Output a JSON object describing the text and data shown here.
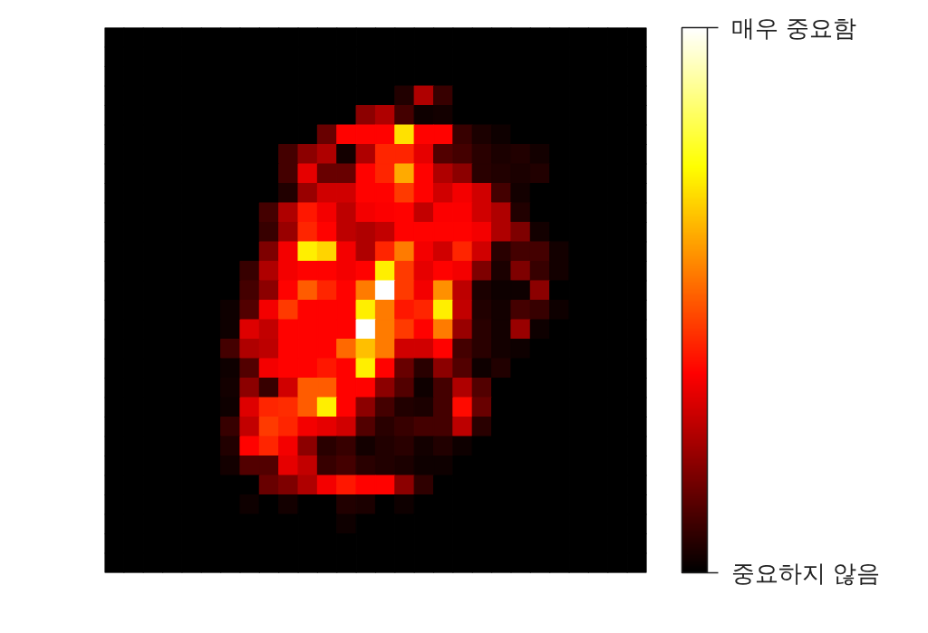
{
  "chart_data": {
    "type": "heatmap",
    "categories": [
      null,
      null,
      null,
      null,
      null,
      null,
      null,
      null,
      null,
      null,
      null,
      null,
      null,
      null,
      null,
      null,
      null,
      null,
      null,
      null,
      null,
      null,
      null,
      null,
      null,
      null,
      null,
      null
    ],
    "y_categories": [
      null,
      null,
      null,
      null,
      null,
      null,
      null,
      null,
      null,
      null,
      null,
      null,
      null,
      null,
      null,
      null,
      null,
      null,
      null,
      null,
      null,
      null,
      null,
      null,
      null,
      null,
      null,
      null
    ],
    "cells": [
      [
        0,
        0,
        0,
        0,
        0,
        0,
        0,
        0,
        0,
        0,
        0,
        0,
        0,
        0,
        0,
        0,
        0,
        0,
        0,
        0,
        0,
        0,
        0,
        0,
        0,
        0,
        0,
        0
      ],
      [
        0,
        0,
        0,
        0,
        0,
        0,
        0,
        0,
        0,
        0,
        0,
        0,
        0,
        0,
        0,
        0,
        0,
        0,
        0,
        0,
        0,
        0,
        0,
        0,
        0,
        0,
        0,
        0
      ],
      [
        0,
        0,
        0,
        0,
        0,
        0,
        0,
        0,
        0,
        0,
        0,
        0,
        0,
        0,
        0,
        0,
        0,
        0,
        0,
        0,
        0,
        0,
        0,
        0,
        0,
        0,
        0,
        0
      ],
      [
        0,
        0,
        0,
        0,
        0,
        0,
        0,
        0,
        0,
        0,
        0,
        0,
        0,
        0,
        0,
        0.05,
        0.25,
        0.08,
        0,
        0,
        0,
        0,
        0,
        0,
        0,
        0,
        0,
        0
      ],
      [
        0,
        0,
        0,
        0,
        0,
        0,
        0,
        0,
        0,
        0,
        0,
        0,
        0,
        0.2,
        0.25,
        0.1,
        0.02,
        0.03,
        0,
        0,
        0,
        0,
        0,
        0,
        0,
        0,
        0,
        0
      ],
      [
        0,
        0,
        0,
        0,
        0,
        0,
        0,
        0,
        0,
        0,
        0,
        0.15,
        0.37,
        0.37,
        0.37,
        0.7,
        0.37,
        0.37,
        0.08,
        0.04,
        0.02,
        0,
        0,
        0,
        0,
        0,
        0,
        0
      ],
      [
        0,
        0,
        0,
        0,
        0,
        0,
        0,
        0,
        0,
        0.1,
        0.2,
        0.25,
        0.03,
        0.25,
        0.42,
        0.42,
        0.33,
        0.12,
        0.1,
        0.06,
        0.04,
        0.05,
        0.03,
        0,
        0,
        0,
        0,
        0
      ],
      [
        0,
        0,
        0,
        0,
        0,
        0,
        0,
        0,
        0,
        0.1,
        0.33,
        0.15,
        0.15,
        0.37,
        0.42,
        0.62,
        0.37,
        0.25,
        0.2,
        0.06,
        0.05,
        0.04,
        0.05,
        0,
        0,
        0,
        0,
        0
      ],
      [
        0,
        0,
        0,
        0,
        0,
        0,
        0,
        0,
        0,
        0.05,
        0.22,
        0.3,
        0.3,
        0.37,
        0.37,
        0.45,
        0.37,
        0.3,
        0.35,
        0.3,
        0.1,
        0.03,
        0,
        0,
        0,
        0,
        0,
        0
      ],
      [
        0,
        0,
        0,
        0,
        0,
        0,
        0,
        0,
        0.1,
        0.25,
        0.4,
        0.35,
        0.27,
        0.35,
        0.36,
        0.37,
        0.28,
        0.36,
        0.36,
        0.3,
        0.25,
        0.05,
        0,
        0,
        0,
        0,
        0,
        0
      ],
      [
        0,
        0,
        0,
        0,
        0,
        0,
        0,
        0,
        0.08,
        0.22,
        0.42,
        0.37,
        0.27,
        0.25,
        0.28,
        0.37,
        0.37,
        0.37,
        0.37,
        0.35,
        0.25,
        0.18,
        0.03,
        0,
        0,
        0,
        0,
        0
      ],
      [
        0,
        0,
        0,
        0,
        0,
        0,
        0,
        0,
        0.18,
        0.35,
        0.72,
        0.68,
        0.35,
        0.25,
        0.42,
        0.55,
        0.35,
        0.3,
        0.42,
        0.3,
        0.06,
        0.1,
        0.1,
        0.03,
        0,
        0,
        0,
        0
      ],
      [
        0,
        0,
        0,
        0,
        0,
        0,
        0,
        0.08,
        0.25,
        0.35,
        0.37,
        0.37,
        0.35,
        0.37,
        0.72,
        0.45,
        0.33,
        0.37,
        0.35,
        0.18,
        0.04,
        0.18,
        0.08,
        0.03,
        0,
        0,
        0,
        0
      ],
      [
        0,
        0,
        0,
        0,
        0,
        0,
        0,
        0.1,
        0.2,
        0.37,
        0.5,
        0.42,
        0.37,
        0.55,
        1,
        0.45,
        0.35,
        0.58,
        0.27,
        0.04,
        0.02,
        0.02,
        0.2,
        0,
        0,
        0,
        0,
        0
      ],
      [
        0,
        0,
        0,
        0,
        0,
        0,
        0.02,
        0.12,
        0.35,
        0.45,
        0.37,
        0.37,
        0.37,
        0.72,
        0.55,
        0.4,
        0.42,
        0.72,
        0.28,
        0.05,
        0.03,
        0.1,
        0.08,
        0.02,
        0,
        0,
        0,
        0
      ],
      [
        0,
        0,
        0,
        0,
        0,
        0,
        0.02,
        0.32,
        0.28,
        0.37,
        0.37,
        0.37,
        0.37,
        1,
        0.55,
        0.45,
        0.37,
        0.55,
        0.22,
        0.06,
        0.03,
        0.22,
        0.02,
        0,
        0,
        0,
        0,
        0
      ],
      [
        0,
        0,
        0,
        0,
        0,
        0,
        0.1,
        0.25,
        0.27,
        0.37,
        0.37,
        0.37,
        0.52,
        0.65,
        0.55,
        0.3,
        0.3,
        0.37,
        0.1,
        0.06,
        0.03,
        0.02,
        0,
        0,
        0,
        0,
        0,
        0
      ],
      [
        0,
        0,
        0,
        0,
        0,
        0,
        0.02,
        0.12,
        0.35,
        0.37,
        0.37,
        0.4,
        0.37,
        0.72,
        0.37,
        0.15,
        0.06,
        0.2,
        0.12,
        0.02,
        0.05,
        0,
        0,
        0,
        0,
        0,
        0,
        0
      ],
      [
        0,
        0,
        0,
        0,
        0,
        0,
        0.03,
        0.2,
        0.08,
        0.3,
        0.5,
        0.5,
        0.37,
        0.37,
        0.2,
        0.12,
        0.02,
        0.1,
        0.25,
        0.12,
        0,
        0,
        0,
        0,
        0,
        0,
        0,
        0
      ],
      [
        0,
        0,
        0,
        0,
        0,
        0,
        0.02,
        0.32,
        0.42,
        0.43,
        0.5,
        0.72,
        0.37,
        0.2,
        0.1,
        0.05,
        0.04,
        0.1,
        0.38,
        0.15,
        0,
        0,
        0,
        0,
        0,
        0,
        0,
        0
      ],
      [
        0,
        0,
        0,
        0,
        0,
        0,
        0.08,
        0.28,
        0.45,
        0.42,
        0.35,
        0.33,
        0.3,
        0.12,
        0.06,
        0.08,
        0.1,
        0.1,
        0.27,
        0.06,
        0,
        0,
        0,
        0,
        0,
        0,
        0,
        0
      ],
      [
        0,
        0,
        0,
        0,
        0,
        0,
        0.05,
        0.37,
        0.42,
        0.35,
        0.2,
        0.06,
        0.08,
        0.03,
        0.05,
        0.06,
        0.03,
        0.05,
        0.02,
        0,
        0,
        0,
        0,
        0,
        0,
        0,
        0,
        0
      ],
      [
        0,
        0,
        0,
        0,
        0,
        0,
        0.03,
        0.12,
        0.12,
        0.33,
        0.28,
        0.08,
        0.1,
        0.06,
        0.05,
        0.04,
        0.02,
        0.02,
        0,
        0,
        0,
        0,
        0,
        0,
        0,
        0,
        0,
        0
      ],
      [
        0,
        0,
        0,
        0,
        0,
        0,
        0,
        0,
        0.15,
        0.18,
        0.25,
        0.35,
        0.4,
        0.37,
        0.37,
        0.2,
        0.07,
        0,
        0,
        0,
        0,
        0,
        0,
        0,
        0,
        0,
        0,
        0
      ],
      [
        0,
        0,
        0,
        0,
        0,
        0,
        0,
        0.02,
        0,
        0.03,
        0,
        0,
        0.05,
        0.04,
        0,
        0.02,
        0,
        0,
        0,
        0,
        0,
        0,
        0,
        0,
        0,
        0,
        0,
        0
      ],
      [
        0,
        0,
        0,
        0,
        0,
        0,
        0,
        0,
        0,
        0,
        0,
        0,
        0.02,
        0,
        0,
        0,
        0,
        0,
        0,
        0,
        0,
        0,
        0,
        0,
        0,
        0,
        0,
        0
      ],
      [
        0,
        0,
        0,
        0,
        0,
        0,
        0,
        0,
        0,
        0,
        0,
        0,
        0,
        0,
        0,
        0,
        0,
        0,
        0,
        0,
        0,
        0,
        0,
        0,
        0,
        0,
        0,
        0
      ],
      [
        0,
        0,
        0,
        0,
        0,
        0,
        0,
        0,
        0,
        0,
        0,
        0,
        0,
        0,
        0,
        0,
        0,
        0,
        0,
        0,
        0,
        0,
        0,
        0,
        0,
        0,
        0,
        0
      ]
    ],
    "clim": [
      0,
      1
    ],
    "cticks": [
      {
        "value": 0,
        "label": "중요하지 않음"
      },
      {
        "value": 1,
        "label": "매우 중요함"
      }
    ],
    "tick_labels": false
  }
}
